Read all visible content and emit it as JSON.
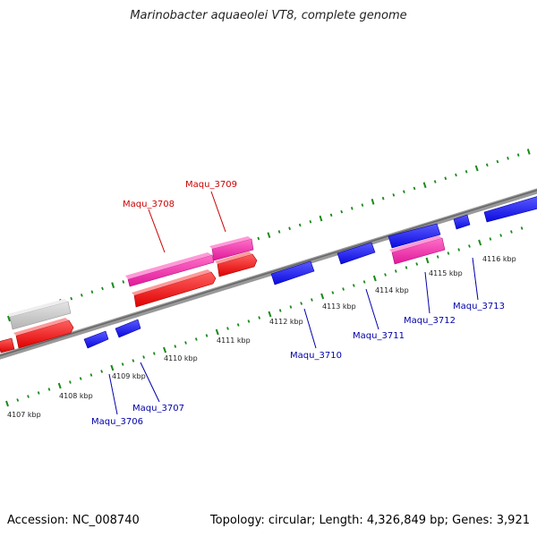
{
  "title": "Marinobacter aquaeolei VT8, complete genome",
  "footer": {
    "accession": "Accession: NC_008740",
    "topology": "Topology: circular; Length: 4,326,849 bp; Genes: 3,921"
  },
  "colors": {
    "backbone": "#888888",
    "ticks": "#1a8a1a",
    "forward_gene": "#ff1a1a",
    "highlight_gene": "#ff33aa",
    "reverse_gene": "#1a1aff",
    "pseudo_gene": "#c8c8c8",
    "forward_label": "#cc0000",
    "reverse_label": "#0000aa"
  },
  "scale_labels": [
    "4107 kbp",
    "4108 kbp",
    "4109 kbp",
    "4110 kbp",
    "4111 kbp",
    "4112 kbp",
    "4113 kbp",
    "4114 kbp",
    "4115 kbp",
    "4116 kbp"
  ],
  "gene_labels": {
    "forward": [
      "Maqu_3708",
      "Maqu_3709"
    ],
    "reverse": [
      "Maqu_3706",
      "Maqu_3707",
      "Maqu_3710",
      "Maqu_3711",
      "Maqu_3712",
      "Maqu_3713"
    ]
  }
}
